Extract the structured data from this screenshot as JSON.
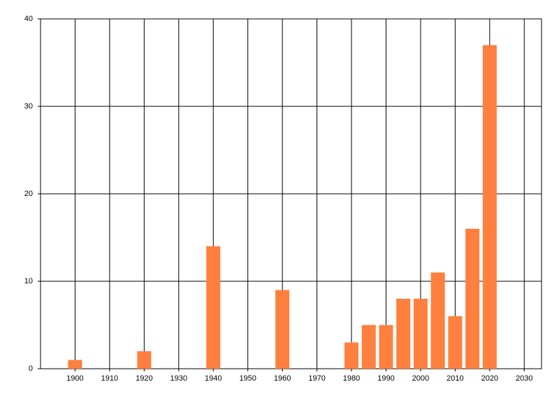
{
  "chart_data": {
    "type": "bar",
    "x": [
      1900,
      1920,
      1940,
      1960,
      1980,
      1985,
      1990,
      1995,
      2000,
      2005,
      2010,
      2015,
      2020
    ],
    "values": [
      1,
      2,
      14,
      9,
      3,
      5,
      5,
      8,
      8,
      11,
      6,
      16,
      37
    ],
    "color": "#ff7f3f",
    "xlim": [
      1890,
      2035
    ],
    "xticks": [
      1900,
      1910,
      1920,
      1930,
      1940,
      1950,
      1960,
      1970,
      1980,
      1990,
      2000,
      2010,
      2020,
      2030
    ],
    "ylim": [
      0,
      40
    ],
    "yticks": [
      0,
      10,
      20,
      30,
      40
    ],
    "grid": true
  }
}
